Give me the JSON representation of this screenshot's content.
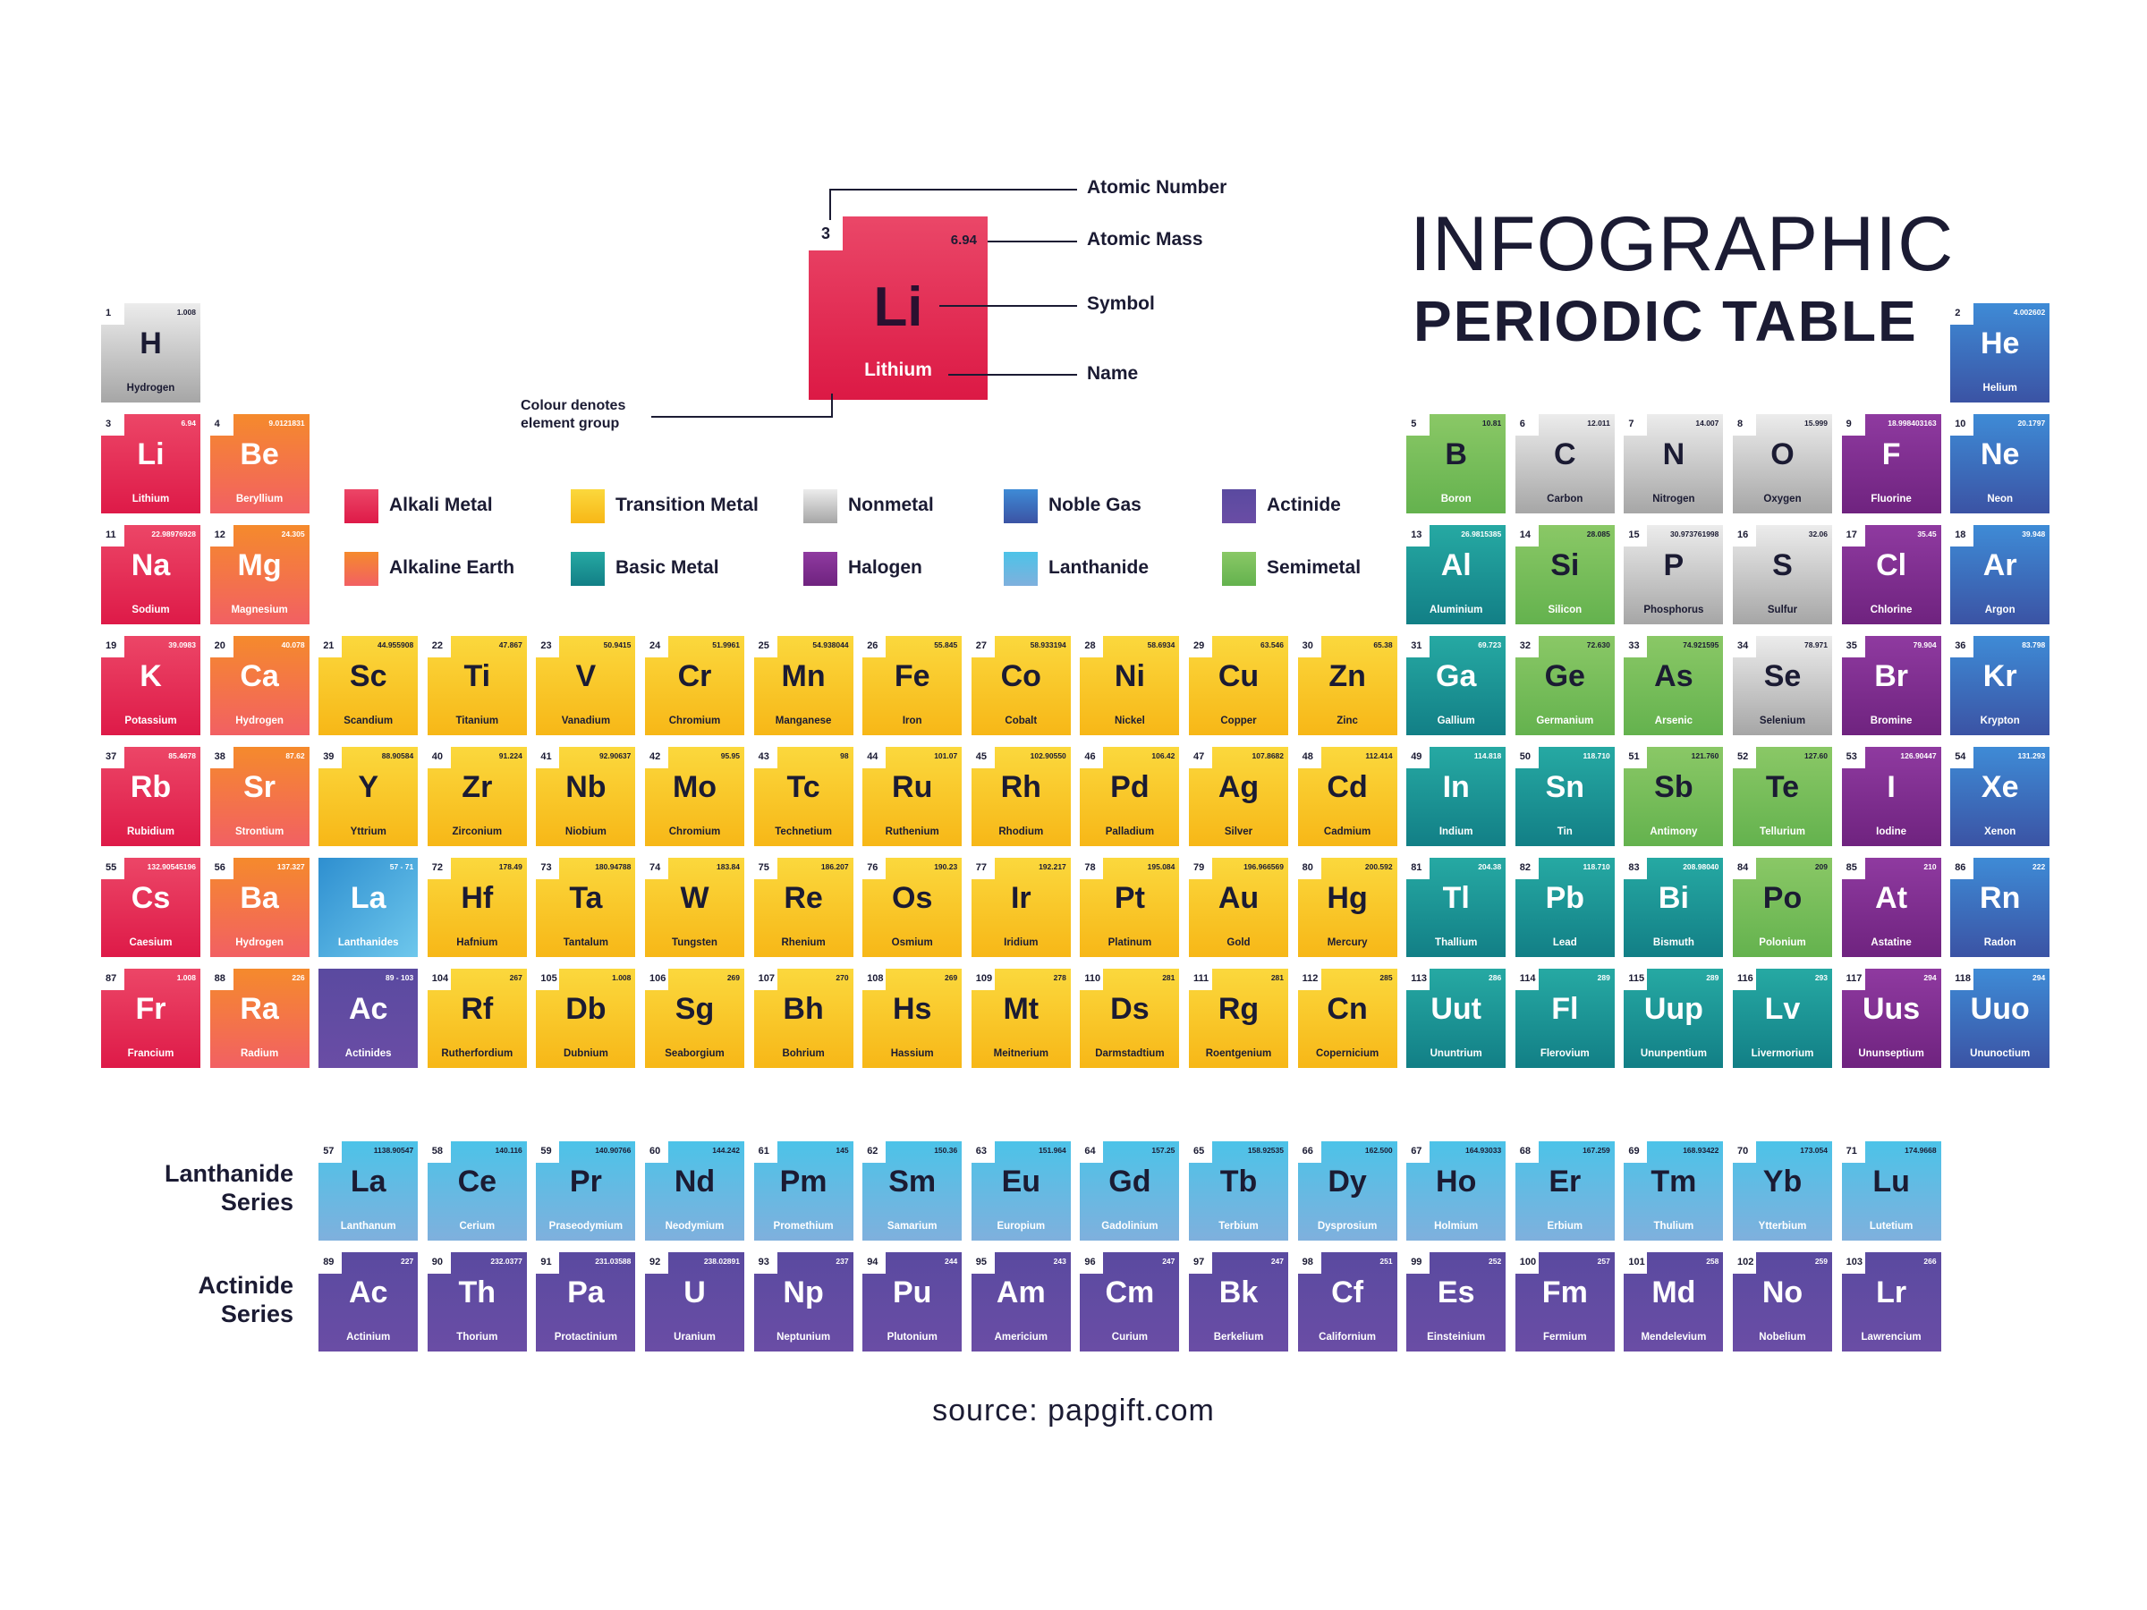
{
  "title": {
    "line1": "INFOGRAPHIC",
    "line2": "PERIODIC TABLE"
  },
  "key": {
    "number": "3",
    "mass": "6.94",
    "symbol": "Li",
    "name": "Lithium",
    "labels": {
      "atomic_number": "Atomic Number",
      "atomic_mass": "Atomic Mass",
      "symbol": "Symbol",
      "name": "Name",
      "colour_note": "Colour denotes element group"
    }
  },
  "legend": [
    {
      "label": "Alkali Metal",
      "group": "alkali",
      "color": "#e4275a"
    },
    {
      "label": "Transition Metal",
      "group": "transition",
      "color": "#f9c62a"
    },
    {
      "label": "Nonmetal",
      "group": "nonmetal",
      "color": "#bcbcbc"
    },
    {
      "label": "Noble Gas",
      "group": "noble",
      "color": "#3b6fc0"
    },
    {
      "label": "Actinide",
      "group": "actinide",
      "color": "#5e4aa0"
    },
    {
      "label": "Alkaline Earth",
      "group": "alkaline",
      "color": "#f47a44"
    },
    {
      "label": "Basic Metal",
      "group": "basic",
      "color": "#1c9596"
    },
    {
      "label": "Halogen",
      "group": "halogen",
      "color": "#80308f"
    },
    {
      "label": "Lanthanide",
      "group": "lanthanide",
      "color": "#67c3e7"
    },
    {
      "label": "Semimetal",
      "group": "semimetal",
      "color": "#78bd5a"
    }
  ],
  "elements": [
    {
      "n": "1",
      "m": "1.008",
      "s": "H",
      "name": "Hydrogen",
      "g": "nonmetal",
      "row": 1,
      "col": 1
    },
    {
      "n": "2",
      "m": "4.002602",
      "s": "He",
      "name": "Helium",
      "g": "noble",
      "row": 1,
      "col": 18
    },
    {
      "n": "3",
      "m": "6.94",
      "s": "Li",
      "name": "Lithium",
      "g": "alkali",
      "row": 2,
      "col": 1
    },
    {
      "n": "4",
      "m": "9.0121831",
      "s": "Be",
      "name": "Beryllium",
      "g": "alkaline",
      "row": 2,
      "col": 2
    },
    {
      "n": "5",
      "m": "10.81",
      "s": "B",
      "name": "Boron",
      "g": "semimetal",
      "row": 2,
      "col": 13
    },
    {
      "n": "6",
      "m": "12.011",
      "s": "C",
      "name": "Carbon",
      "g": "nonmetal",
      "row": 2,
      "col": 14
    },
    {
      "n": "7",
      "m": "14.007",
      "s": "N",
      "name": "Nitrogen",
      "g": "nonmetal",
      "row": 2,
      "col": 15
    },
    {
      "n": "8",
      "m": "15.999",
      "s": "O",
      "name": "Oxygen",
      "g": "nonmetal",
      "row": 2,
      "col": 16
    },
    {
      "n": "9",
      "m": "18.998403163",
      "s": "F",
      "name": "Fluorine",
      "g": "halogen",
      "row": 2,
      "col": 17
    },
    {
      "n": "10",
      "m": "20.1797",
      "s": "Ne",
      "name": "Neon",
      "g": "noble",
      "row": 2,
      "col": 18
    },
    {
      "n": "11",
      "m": "22.98976928",
      "s": "Na",
      "name": "Sodium",
      "g": "alkali",
      "row": 3,
      "col": 1
    },
    {
      "n": "12",
      "m": "24.305",
      "s": "Mg",
      "name": "Magnesium",
      "g": "alkaline",
      "row": 3,
      "col": 2
    },
    {
      "n": "13",
      "m": "26.9815385",
      "s": "Al",
      "name": "Aluminium",
      "g": "basic",
      "row": 3,
      "col": 13
    },
    {
      "n": "14",
      "m": "28.085",
      "s": "Si",
      "name": "Silicon",
      "g": "semimetal",
      "row": 3,
      "col": 14
    },
    {
      "n": "15",
      "m": "30.973761998",
      "s": "P",
      "name": "Phosphorus",
      "g": "nonmetal",
      "row": 3,
      "col": 15
    },
    {
      "n": "16",
      "m": "32.06",
      "s": "S",
      "name": "Sulfur",
      "g": "nonmetal",
      "row": 3,
      "col": 16
    },
    {
      "n": "17",
      "m": "35.45",
      "s": "Cl",
      "name": "Chlorine",
      "g": "halogen",
      "row": 3,
      "col": 17
    },
    {
      "n": "18",
      "m": "39.948",
      "s": "Ar",
      "name": "Argon",
      "g": "noble",
      "row": 3,
      "col": 18
    },
    {
      "n": "19",
      "m": "39.0983",
      "s": "K",
      "name": "Potassium",
      "g": "alkali",
      "row": 4,
      "col": 1
    },
    {
      "n": "20",
      "m": "40.078",
      "s": "Ca",
      "name": "Hydrogen",
      "g": "alkaline",
      "row": 4,
      "col": 2
    },
    {
      "n": "21",
      "m": "44.955908",
      "s": "Sc",
      "name": "Scandium",
      "g": "transition",
      "row": 4,
      "col": 3
    },
    {
      "n": "22",
      "m": "47.867",
      "s": "Ti",
      "name": "Titanium",
      "g": "transition",
      "row": 4,
      "col": 4
    },
    {
      "n": "23",
      "m": "50.9415",
      "s": "V",
      "name": "Vanadium",
      "g": "transition",
      "row": 4,
      "col": 5
    },
    {
      "n": "24",
      "m": "51.9961",
      "s": "Cr",
      "name": "Chromium",
      "g": "transition",
      "row": 4,
      "col": 6
    },
    {
      "n": "25",
      "m": "54.938044",
      "s": "Mn",
      "name": "Manganese",
      "g": "transition",
      "row": 4,
      "col": 7
    },
    {
      "n": "26",
      "m": "55.845",
      "s": "Fe",
      "name": "Iron",
      "g": "transition",
      "row": 4,
      "col": 8
    },
    {
      "n": "27",
      "m": "58.933194",
      "s": "Co",
      "name": "Cobalt",
      "g": "transition",
      "row": 4,
      "col": 9
    },
    {
      "n": "28",
      "m": "58.6934",
      "s": "Ni",
      "name": "Nickel",
      "g": "transition",
      "row": 4,
      "col": 10
    },
    {
      "n": "29",
      "m": "63.546",
      "s": "Cu",
      "name": "Copper",
      "g": "transition",
      "row": 4,
      "col": 11
    },
    {
      "n": "30",
      "m": "65.38",
      "s": "Zn",
      "name": "Zinc",
      "g": "transition",
      "row": 4,
      "col": 12
    },
    {
      "n": "31",
      "m": "69.723",
      "s": "Ga",
      "name": "Gallium",
      "g": "basic",
      "row": 4,
      "col": 13
    },
    {
      "n": "32",
      "m": "72.630",
      "s": "Ge",
      "name": "Germanium",
      "g": "semimetal",
      "row": 4,
      "col": 14
    },
    {
      "n": "33",
      "m": "74.921595",
      "s": "As",
      "name": "Arsenic",
      "g": "semimetal",
      "row": 4,
      "col": 15
    },
    {
      "n": "34",
      "m": "78.971",
      "s": "Se",
      "name": "Selenium",
      "g": "nonmetal",
      "row": 4,
      "col": 16
    },
    {
      "n": "35",
      "m": "79.904",
      "s": "Br",
      "name": "Bromine",
      "g": "halogen",
      "row": 4,
      "col": 17
    },
    {
      "n": "36",
      "m": "83.798",
      "s": "Kr",
      "name": "Krypton",
      "g": "noble",
      "row": 4,
      "col": 18
    },
    {
      "n": "37",
      "m": "85.4678",
      "s": "Rb",
      "name": "Rubidium",
      "g": "alkali",
      "row": 5,
      "col": 1
    },
    {
      "n": "38",
      "m": "87.62",
      "s": "Sr",
      "name": "Strontium",
      "g": "alkaline",
      "row": 5,
      "col": 2
    },
    {
      "n": "39",
      "m": "88.90584",
      "s": "Y",
      "name": "Yttrium",
      "g": "transition",
      "row": 5,
      "col": 3
    },
    {
      "n": "40",
      "m": "91.224",
      "s": "Zr",
      "name": "Zirconium",
      "g": "transition",
      "row": 5,
      "col": 4
    },
    {
      "n": "41",
      "m": "92.90637",
      "s": "Nb",
      "name": "Niobium",
      "g": "transition",
      "row": 5,
      "col": 5
    },
    {
      "n": "42",
      "m": "95.95",
      "s": "Mo",
      "name": "Chromium",
      "g": "transition",
      "row": 5,
      "col": 6
    },
    {
      "n": "43",
      "m": "98",
      "s": "Tc",
      "name": "Technetium",
      "g": "transition",
      "row": 5,
      "col": 7
    },
    {
      "n": "44",
      "m": "101.07",
      "s": "Ru",
      "name": "Ruthenium",
      "g": "transition",
      "row": 5,
      "col": 8
    },
    {
      "n": "45",
      "m": "102.90550",
      "s": "Rh",
      "name": "Rhodium",
      "g": "transition",
      "row": 5,
      "col": 9
    },
    {
      "n": "46",
      "m": "106.42",
      "s": "Pd",
      "name": "Palladium",
      "g": "transition",
      "row": 5,
      "col": 10
    },
    {
      "n": "47",
      "m": "107.8682",
      "s": "Ag",
      "name": "Silver",
      "g": "transition",
      "row": 5,
      "col": 11
    },
    {
      "n": "48",
      "m": "112.414",
      "s": "Cd",
      "name": "Cadmium",
      "g": "transition",
      "row": 5,
      "col": 12
    },
    {
      "n": "49",
      "m": "114.818",
      "s": "In",
      "name": "Indium",
      "g": "basic",
      "row": 5,
      "col": 13
    },
    {
      "n": "50",
      "m": "118.710",
      "s": "Sn",
      "name": "Tin",
      "g": "basic",
      "row": 5,
      "col": 14
    },
    {
      "n": "51",
      "m": "121.760",
      "s": "Sb",
      "name": "Antimony",
      "g": "semimetal",
      "row": 5,
      "col": 15
    },
    {
      "n": "52",
      "m": "127.60",
      "s": "Te",
      "name": "Tellurium",
      "g": "semimetal",
      "row": 5,
      "col": 16
    },
    {
      "n": "53",
      "m": "126.90447",
      "s": "I",
      "name": "Iodine",
      "g": "halogen",
      "row": 5,
      "col": 17
    },
    {
      "n": "54",
      "m": "131.293",
      "s": "Xe",
      "name": "Xenon",
      "g": "noble",
      "row": 5,
      "col": 18
    },
    {
      "n": "55",
      "m": "132.90545196",
      "s": "Cs",
      "name": "Caesium",
      "g": "alkali",
      "row": 6,
      "col": 1
    },
    {
      "n": "56",
      "m": "137.327",
      "s": "Ba",
      "name": "Hydrogen",
      "g": "alkaline",
      "row": 6,
      "col": 2
    },
    {
      "n": "",
      "m": "57 - 71",
      "s": "La",
      "name": "Lanthanides",
      "g": "lanth-ref",
      "row": 6,
      "col": 3
    },
    {
      "n": "72",
      "m": "178.49",
      "s": "Hf",
      "name": "Hafnium",
      "g": "transition",
      "row": 6,
      "col": 4
    },
    {
      "n": "73",
      "m": "180.94788",
      "s": "Ta",
      "name": "Tantalum",
      "g": "transition",
      "row": 6,
      "col": 5
    },
    {
      "n": "74",
      "m": "183.84",
      "s": "W",
      "name": "Tungsten",
      "g": "transition",
      "row": 6,
      "col": 6
    },
    {
      "n": "75",
      "m": "186.207",
      "s": "Re",
      "name": "Rhenium",
      "g": "transition",
      "row": 6,
      "col": 7
    },
    {
      "n": "76",
      "m": "190.23",
      "s": "Os",
      "name": "Osmium",
      "g": "transition",
      "row": 6,
      "col": 8
    },
    {
      "n": "77",
      "m": "192.217",
      "s": "Ir",
      "name": "Iridium",
      "g": "transition",
      "row": 6,
      "col": 9
    },
    {
      "n": "78",
      "m": "195.084",
      "s": "Pt",
      "name": "Platinum",
      "g": "transition",
      "row": 6,
      "col": 10
    },
    {
      "n": "79",
      "m": "196.966569",
      "s": "Au",
      "name": "Gold",
      "g": "transition",
      "row": 6,
      "col": 11
    },
    {
      "n": "80",
      "m": "200.592",
      "s": "Hg",
      "name": "Mercury",
      "g": "transition",
      "row": 6,
      "col": 12
    },
    {
      "n": "81",
      "m": "204.38",
      "s": "Tl",
      "name": "Thallium",
      "g": "basic",
      "row": 6,
      "col": 13
    },
    {
      "n": "82",
      "m": "118.710",
      "s": "Pb",
      "name": "Lead",
      "g": "basic",
      "row": 6,
      "col": 14
    },
    {
      "n": "83",
      "m": "208.98040",
      "s": "Bi",
      "name": "Bismuth",
      "g": "basic",
      "row": 6,
      "col": 15
    },
    {
      "n": "84",
      "m": "209",
      "s": "Po",
      "name": "Polonium",
      "g": "semimetal",
      "row": 6,
      "col": 16
    },
    {
      "n": "85",
      "m": "210",
      "s": "At",
      "name": "Astatine",
      "g": "halogen",
      "row": 6,
      "col": 17
    },
    {
      "n": "86",
      "m": "222",
      "s": "Rn",
      "name": "Radon",
      "g": "noble",
      "row": 6,
      "col": 18
    },
    {
      "n": "87",
      "m": "1.008",
      "s": "Fr",
      "name": "Francium",
      "g": "alkali",
      "row": 7,
      "col": 1
    },
    {
      "n": "88",
      "m": "226",
      "s": "Ra",
      "name": "Radium",
      "g": "alkaline",
      "row": 7,
      "col": 2
    },
    {
      "n": "",
      "m": "89 - 103",
      "s": "Ac",
      "name": "Actinides",
      "g": "actin-ref",
      "row": 7,
      "col": 3
    },
    {
      "n": "104",
      "m": "267",
      "s": "Rf",
      "name": "Rutherfordium",
      "g": "transition",
      "row": 7,
      "col": 4
    },
    {
      "n": "105",
      "m": "1.008",
      "s": "Db",
      "name": "Dubnium",
      "g": "transition",
      "row": 7,
      "col": 5
    },
    {
      "n": "106",
      "m": "269",
      "s": "Sg",
      "name": "Seaborgium",
      "g": "transition",
      "row": 7,
      "col": 6
    },
    {
      "n": "107",
      "m": "270",
      "s": "Bh",
      "name": "Bohrium",
      "g": "transition",
      "row": 7,
      "col": 7
    },
    {
      "n": "108",
      "m": "269",
      "s": "Hs",
      "name": "Hassium",
      "g": "transition",
      "row": 7,
      "col": 8
    },
    {
      "n": "109",
      "m": "278",
      "s": "Mt",
      "name": "Meitnerium",
      "g": "transition",
      "row": 7,
      "col": 9
    },
    {
      "n": "110",
      "m": "281",
      "s": "Ds",
      "name": "Darmstadtium",
      "g": "transition",
      "row": 7,
      "col": 10
    },
    {
      "n": "111",
      "m": "281",
      "s": "Rg",
      "name": "Roentgenium",
      "g": "transition",
      "row": 7,
      "col": 11
    },
    {
      "n": "112",
      "m": "285",
      "s": "Cn",
      "name": "Copernicium",
      "g": "transition",
      "row": 7,
      "col": 12
    },
    {
      "n": "113",
      "m": "286",
      "s": "Uut",
      "name": "Ununtrium",
      "g": "basic",
      "row": 7,
      "col": 13
    },
    {
      "n": "114",
      "m": "289",
      "s": "Fl",
      "name": "Flerovium",
      "g": "basic",
      "row": 7,
      "col": 14
    },
    {
      "n": "115",
      "m": "289",
      "s": "Uup",
      "name": "Ununpentium",
      "g": "basic",
      "row": 7,
      "col": 15
    },
    {
      "n": "116",
      "m": "293",
      "s": "Lv",
      "name": "Livermorium",
      "g": "basic",
      "row": 7,
      "col": 16
    },
    {
      "n": "117",
      "m": "294",
      "s": "Uus",
      "name": "Ununseptium",
      "g": "halogen",
      "row": 7,
      "col": 17
    },
    {
      "n": "118",
      "m": "294",
      "s": "Uuo",
      "name": "Ununoctium",
      "g": "noble",
      "row": 7,
      "col": 18
    },
    {
      "n": "57",
      "m": "1138.90547",
      "s": "La",
      "name": "Lanthanum",
      "g": "lanthanide",
      "row": 9,
      "col": 3
    },
    {
      "n": "58",
      "m": "140.116",
      "s": "Ce",
      "name": "Cerium",
      "g": "lanthanide",
      "row": 9,
      "col": 4
    },
    {
      "n": "59",
      "m": "140.90766",
      "s": "Pr",
      "name": "Praseodymium",
      "g": "lanthanide",
      "row": 9,
      "col": 5
    },
    {
      "n": "60",
      "m": "144.242",
      "s": "Nd",
      "name": "Neodymium",
      "g": "lanthanide",
      "row": 9,
      "col": 6
    },
    {
      "n": "61",
      "m": "145",
      "s": "Pm",
      "name": "Promethium",
      "g": "lanthanide",
      "row": 9,
      "col": 7
    },
    {
      "n": "62",
      "m": "150.36",
      "s": "Sm",
      "name": "Samarium",
      "g": "lanthanide",
      "row": 9,
      "col": 8
    },
    {
      "n": "63",
      "m": "151.964",
      "s": "Eu",
      "name": "Europium",
      "g": "lanthanide",
      "row": 9,
      "col": 9
    },
    {
      "n": "64",
      "m": "157.25",
      "s": "Gd",
      "name": "Gadolinium",
      "g": "lanthanide",
      "row": 9,
      "col": 10
    },
    {
      "n": "65",
      "m": "158.92535",
      "s": "Tb",
      "name": "Terbium",
      "g": "lanthanide",
      "row": 9,
      "col": 11
    },
    {
      "n": "66",
      "m": "162.500",
      "s": "Dy",
      "name": "Dysprosium",
      "g": "lanthanide",
      "row": 9,
      "col": 12
    },
    {
      "n": "67",
      "m": "164.93033",
      "s": "Ho",
      "name": "Holmium",
      "g": "lanthanide",
      "row": 9,
      "col": 13
    },
    {
      "n": "68",
      "m": "167.259",
      "s": "Er",
      "name": "Erbium",
      "g": "lanthanide",
      "row": 9,
      "col": 14
    },
    {
      "n": "69",
      "m": "168.93422",
      "s": "Tm",
      "name": "Thulium",
      "g": "lanthanide",
      "row": 9,
      "col": 15
    },
    {
      "n": "70",
      "m": "173.054",
      "s": "Yb",
      "name": "Ytterbium",
      "g": "lanthanide",
      "row": 9,
      "col": 16
    },
    {
      "n": "71",
      "m": "174.9668",
      "s": "Lu",
      "name": "Lutetium",
      "g": "lanthanide",
      "row": 9,
      "col": 17
    },
    {
      "n": "89",
      "m": "227",
      "s": "Ac",
      "name": "Actinium",
      "g": "actinide",
      "row": 10,
      "col": 3
    },
    {
      "n": "90",
      "m": "232.0377",
      "s": "Th",
      "name": "Thorium",
      "g": "actinide",
      "row": 10,
      "col": 4
    },
    {
      "n": "91",
      "m": "231.03588",
      "s": "Pa",
      "name": "Protactinium",
      "g": "actinide",
      "row": 10,
      "col": 5
    },
    {
      "n": "92",
      "m": "238.02891",
      "s": "U",
      "name": "Uranium",
      "g": "actinide",
      "row": 10,
      "col": 6
    },
    {
      "n": "93",
      "m": "237",
      "s": "Np",
      "name": "Neptunium",
      "g": "actinide",
      "row": 10,
      "col": 7
    },
    {
      "n": "94",
      "m": "244",
      "s": "Pu",
      "name": "Plutonium",
      "g": "actinide",
      "row": 10,
      "col": 8
    },
    {
      "n": "95",
      "m": "243",
      "s": "Am",
      "name": "Americium",
      "g": "actinide",
      "row": 10,
      "col": 9
    },
    {
      "n": "96",
      "m": "247",
      "s": "Cm",
      "name": "Curium",
      "g": "actinide",
      "row": 10,
      "col": 10
    },
    {
      "n": "97",
      "m": "247",
      "s": "Bk",
      "name": "Berkelium",
      "g": "actinide",
      "row": 10,
      "col": 11
    },
    {
      "n": "98",
      "m": "251",
      "s": "Cf",
      "name": "Californium",
      "g": "actinide",
      "row": 10,
      "col": 12
    },
    {
      "n": "99",
      "m": "252",
      "s": "Es",
      "name": "Einsteinium",
      "g": "actinide",
      "row": 10,
      "col": 13
    },
    {
      "n": "100",
      "m": "257",
      "s": "Fm",
      "name": "Fermium",
      "g": "actinide",
      "row": 10,
      "col": 14
    },
    {
      "n": "101",
      "m": "258",
      "s": "Md",
      "name": "Mendelevium",
      "g": "actinide",
      "row": 10,
      "col": 15
    },
    {
      "n": "102",
      "m": "259",
      "s": "No",
      "name": "Nobelium",
      "g": "actinide",
      "row": 10,
      "col": 16
    },
    {
      "n": "103",
      "m": "266",
      "s": "Lr",
      "name": "Lawrencium",
      "g": "actinide",
      "row": 10,
      "col": 17
    }
  ],
  "series_labels": {
    "lanthanide": "Lanthanide Series",
    "actinide": "Actinide Series"
  },
  "source": "source: papgift.com"
}
